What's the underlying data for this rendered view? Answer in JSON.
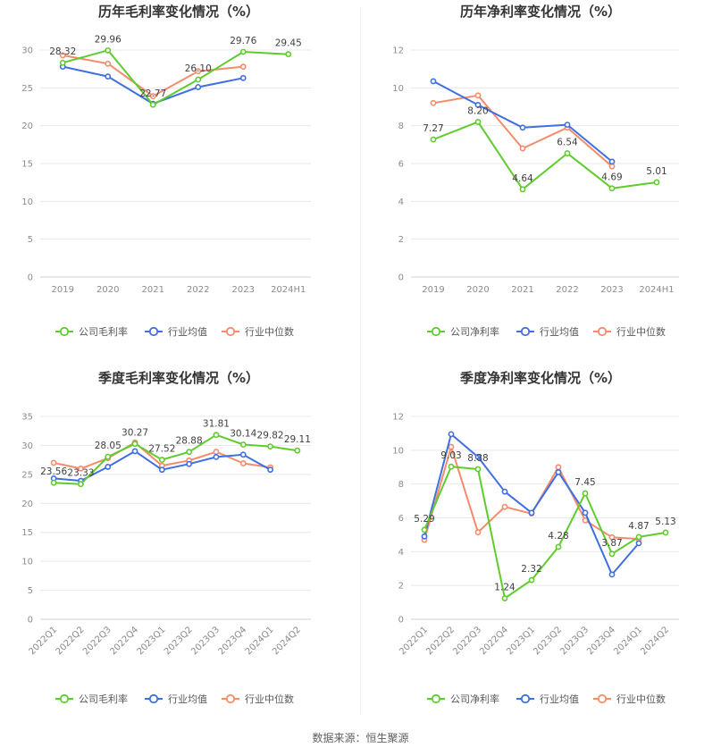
{
  "footer": "数据来源：恒生聚源",
  "colors": {
    "company": "#5fcc2e",
    "avg": "#3f6fe0",
    "median": "#f58b6b",
    "grid": "#e8e8e8",
    "axis": "#cfcfcf"
  },
  "chart_data": [
    {
      "type": "line",
      "title": "历年毛利率变化情况（%）",
      "categories": [
        "2019",
        "2020",
        "2021",
        "2022",
        "2023",
        "2024H1"
      ],
      "ylim": [
        0,
        30
      ],
      "yticks": [
        0,
        5,
        10,
        15,
        20,
        25,
        30
      ],
      "rotate_x": false,
      "legend": "bottom",
      "series": [
        {
          "name": "公司毛利率",
          "key": "company",
          "values": [
            28.32,
            29.96,
            22.77,
            26.1,
            29.76,
            29.45
          ],
          "labels": true
        },
        {
          "name": "行业均值",
          "key": "avg",
          "values": [
            27.8,
            26.5,
            22.9,
            25.1,
            26.3,
            null
          ]
        },
        {
          "name": "行业中位数",
          "key": "median",
          "values": [
            29.3,
            28.2,
            23.9,
            27.2,
            27.8,
            null
          ]
        }
      ]
    },
    {
      "type": "line",
      "title": "历年净利率变化情况（%）",
      "categories": [
        "2019",
        "2020",
        "2021",
        "2022",
        "2023",
        "2024H1"
      ],
      "ylim": [
        0,
        12
      ],
      "yticks": [
        0,
        2,
        4,
        6,
        8,
        10,
        12
      ],
      "rotate_x": false,
      "legend": "bottom",
      "series": [
        {
          "name": "公司净利率",
          "key": "company",
          "values": [
            7.27,
            8.2,
            4.64,
            6.54,
            4.69,
            5.01
          ],
          "labels": true
        },
        {
          "name": "行业均值",
          "key": "avg",
          "values": [
            10.35,
            9.1,
            7.9,
            8.05,
            6.1,
            null
          ]
        },
        {
          "name": "行业中位数",
          "key": "median",
          "values": [
            9.2,
            9.6,
            6.8,
            7.9,
            5.85,
            null
          ]
        }
      ]
    },
    {
      "type": "line",
      "title": "季度毛利率变化情况（%）",
      "categories": [
        "2022Q1",
        "2022Q2",
        "2022Q3",
        "2022Q4",
        "2023Q1",
        "2023Q2",
        "2023Q3",
        "2023Q4",
        "2024Q1",
        "2024Q2"
      ],
      "ylim": [
        0,
        35
      ],
      "yticks": [
        0,
        5,
        10,
        15,
        20,
        25,
        30,
        35
      ],
      "rotate_x": true,
      "legend": "bottom",
      "series": [
        {
          "name": "公司毛利率",
          "key": "company",
          "values": [
            23.56,
            23.33,
            28.05,
            30.27,
            27.52,
            28.88,
            31.81,
            30.14,
            29.82,
            29.11
          ],
          "labels": true
        },
        {
          "name": "行业均值",
          "key": "avg",
          "values": [
            24.3,
            23.9,
            26.3,
            29.0,
            25.8,
            26.8,
            28.0,
            28.4,
            25.8,
            null
          ]
        },
        {
          "name": "行业中位数",
          "key": "median",
          "values": [
            27.0,
            26.0,
            27.8,
            30.5,
            26.5,
            27.4,
            28.9,
            26.9,
            26.2,
            null
          ]
        }
      ]
    },
    {
      "type": "line",
      "title": "季度净利率变化情况（%）",
      "categories": [
        "2022Q1",
        "2022Q2",
        "2022Q3",
        "2022Q4",
        "2023Q1",
        "2023Q2",
        "2023Q3",
        "2023Q4",
        "2024Q1",
        "2024Q2"
      ],
      "ylim": [
        0,
        12
      ],
      "yticks": [
        0,
        2,
        4,
        6,
        8,
        10,
        12
      ],
      "rotate_x": true,
      "legend": "bottom",
      "series": [
        {
          "name": "公司净利率",
          "key": "company",
          "values": [
            5.29,
            9.03,
            8.88,
            1.24,
            2.32,
            4.28,
            7.45,
            3.87,
            4.87,
            5.13
          ],
          "labels": true
        },
        {
          "name": "行业均值",
          "key": "avg",
          "values": [
            4.9,
            10.95,
            9.6,
            7.55,
            6.3,
            8.7,
            6.3,
            2.65,
            4.5,
            null
          ]
        },
        {
          "name": "行业中位数",
          "key": "median",
          "values": [
            4.7,
            10.2,
            5.15,
            6.65,
            6.25,
            9.0,
            5.85,
            4.85,
            4.75,
            null
          ]
        }
      ]
    }
  ]
}
